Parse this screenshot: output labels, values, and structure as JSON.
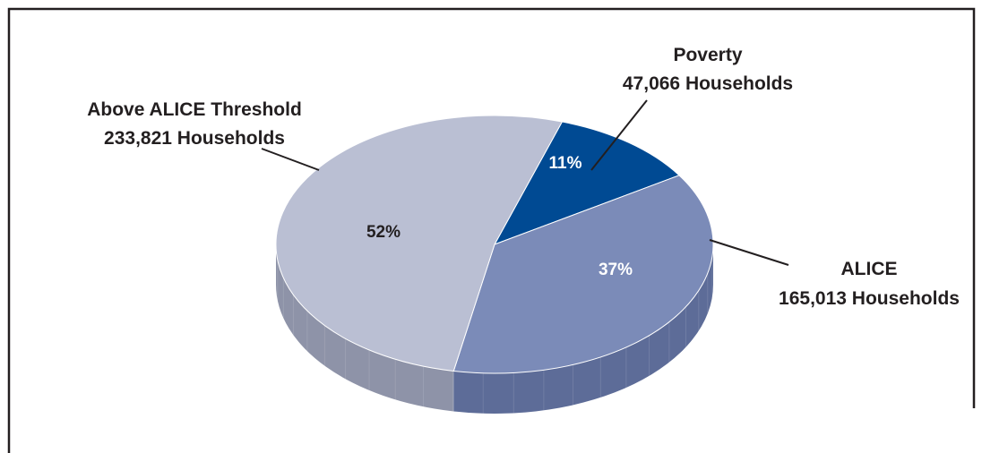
{
  "chart_data": {
    "type": "pie",
    "style": "3d",
    "title": "",
    "slices": [
      {
        "name": "Poverty",
        "households": "47,066 Households",
        "value": 11,
        "percent_label": "11%",
        "color": "#004a93",
        "side_color": "#00336a",
        "pct_color": "#ffffff"
      },
      {
        "name": "ALICE",
        "households": "165,013 Households",
        "value": 37,
        "percent_label": "37%",
        "color": "#7b8bb8",
        "side_color": "#5d6c98",
        "pct_color": "#ffffff"
      },
      {
        "name": "Above ALICE Threshold",
        "households": "233,821 Households",
        "value": 52,
        "percent_label": "52%",
        "color": "#babfd3",
        "side_color": "#8e93a8",
        "pct_color": "#231f20"
      }
    ]
  }
}
